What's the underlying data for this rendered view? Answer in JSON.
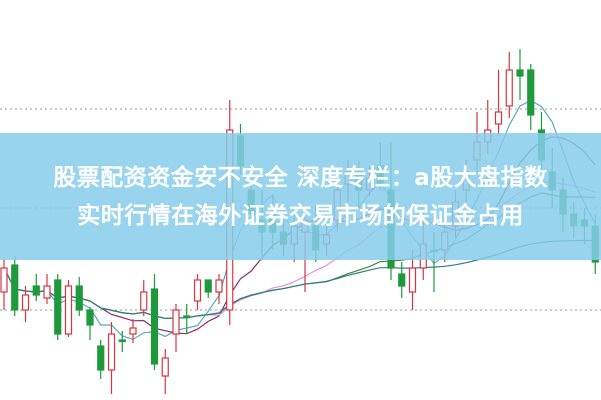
{
  "headline": {
    "line1": "股票配资资金安不安全 深度专栏：a股大盘指数",
    "line2": "实时行情在海外证券交易市场的保证金占用"
  },
  "colors": {
    "up": "#d9343f",
    "down": "#1e9a3c",
    "banner": "#87cdeb",
    "ma": [
      "#5aa7c8",
      "#8b2e6a",
      "#e58ee0",
      "#3f8a3a",
      "#2f7f85"
    ]
  },
  "chart_data": {
    "type": "candlestick",
    "title": "",
    "grid": "dotted horizontal",
    "gridlines": [
      30,
      64,
      97
    ],
    "ylim": [
      0,
      133
    ],
    "moving_averages": [
      5,
      10,
      20,
      30,
      60
    ],
    "candles": [
      [
        36,
        44,
        47,
        30
      ],
      [
        45,
        30,
        48,
        28
      ],
      [
        30,
        35,
        38,
        26
      ],
      [
        38,
        35,
        42,
        33
      ],
      [
        34,
        38,
        42,
        32
      ],
      [
        40,
        22,
        42,
        20
      ],
      [
        22,
        38,
        40,
        21
      ],
      [
        38,
        30,
        41,
        28
      ],
      [
        30,
        25,
        31,
        20
      ],
      [
        18,
        10,
        20,
        7
      ],
      [
        10,
        22,
        26,
        2
      ],
      [
        20,
        20,
        23,
        16
      ],
      [
        22,
        24,
        27,
        19
      ],
      [
        30,
        36,
        40,
        28
      ],
      [
        37,
        12,
        42,
        10
      ],
      [
        8,
        14,
        17,
        2
      ],
      [
        22,
        30,
        32,
        16
      ],
      [
        28,
        28,
        32,
        22
      ],
      [
        33,
        40,
        42,
        30
      ],
      [
        40,
        36,
        40,
        34
      ],
      [
        36,
        40,
        42,
        32
      ],
      [
        30,
        90,
        100,
        25
      ],
      [
        88,
        78,
        92,
        75
      ],
      [
        70,
        62,
        74,
        60
      ],
      [
        60,
        56,
        70,
        48
      ],
      [
        62,
        56,
        68,
        50
      ],
      [
        56,
        52,
        60,
        48
      ],
      [
        52,
        58,
        62,
        46
      ],
      [
        56,
        60,
        64,
        36
      ],
      [
        58,
        50,
        65,
        46
      ],
      [
        52,
        55,
        58,
        48
      ],
      [
        60,
        70,
        75,
        56
      ],
      [
        72,
        76,
        80,
        66
      ],
      [
        76,
        70,
        80,
        64
      ],
      [
        70,
        74,
        78,
        68
      ],
      [
        78,
        72,
        86,
        70
      ],
      [
        70,
        44,
        86,
        40
      ],
      [
        42,
        38,
        46,
        34
      ],
      [
        36,
        44,
        50,
        30
      ],
      [
        44,
        52,
        60,
        40
      ],
      [
        50,
        50,
        56,
        36
      ],
      [
        50,
        56,
        60,
        46
      ],
      [
        58,
        66,
        70,
        54
      ],
      [
        70,
        76,
        80,
        66
      ],
      [
        80,
        86,
        96,
        76
      ],
      [
        86,
        90,
        100,
        82
      ],
      [
        92,
        96,
        110,
        88
      ],
      [
        98,
        110,
        116,
        94
      ],
      [
        110,
        108,
        117,
        100
      ],
      [
        110,
        95,
        112,
        90
      ],
      [
        90,
        80,
        96,
        76
      ],
      [
        76,
        70,
        84,
        64
      ],
      [
        70,
        62,
        74,
        56
      ],
      [
        62,
        58,
        66,
        54
      ],
      [
        60,
        58,
        64,
        52
      ],
      [
        58,
        46,
        62,
        42
      ]
    ]
  }
}
